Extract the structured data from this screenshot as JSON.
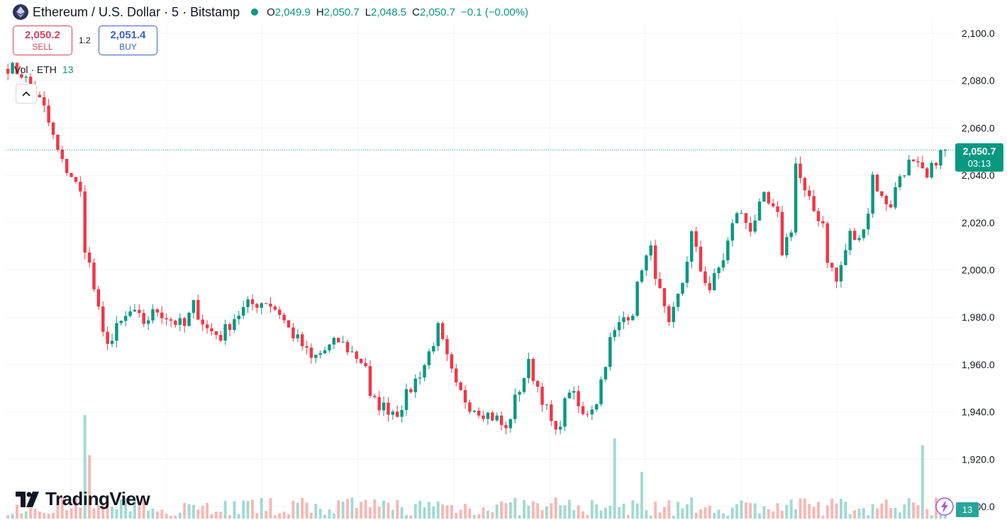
{
  "header": {
    "symbol": "Ethereum / U.S. Dollar · 5 · Bitstamp",
    "ohlc": [
      {
        "k": "O",
        "v": "2,049.9"
      },
      {
        "k": "H",
        "v": "2,050.7"
      },
      {
        "k": "L",
        "v": "2,048.5"
      },
      {
        "k": "C",
        "v": "2,050.7"
      }
    ],
    "change": "−0.1 (−0.00%)"
  },
  "trade": {
    "sell_price": "2,050.2",
    "sell_label": "SELL",
    "spread": "1.2",
    "buy_price": "2,051.4",
    "buy_label": "BUY"
  },
  "volume_legend": {
    "label": "Vol · ETH",
    "value": "13"
  },
  "price_tag": {
    "price": "2,050.7",
    "countdown": "03:13"
  },
  "volume_tag": "13",
  "logo_text": "TradingView",
  "colors": {
    "up": "#089981",
    "down": "#f23645",
    "up_vol": "#8fd3c8",
    "down_vol": "#f7a9a7"
  },
  "icons": [
    "ethereum-icon",
    "status-dot-icon",
    "chevron-up-icon",
    "tradingview-logo-icon",
    "lightning-icon"
  ],
  "chart_data": {
    "type": "candlestick",
    "interval": "5",
    "ylim": [
      1900,
      2105
    ],
    "yticks": [
      "2,100.0",
      "2,080.0",
      "2,060.0",
      "2,040.0",
      "2,020.0",
      "2,000.0",
      "1,980.0",
      "1,960.0",
      "1,940.0",
      "1,920.0",
      "1,900.0"
    ],
    "ytick_values": [
      2100,
      2080,
      2060,
      2040,
      2020,
      2000,
      1980,
      1960,
      1940,
      1920,
      1900
    ],
    "last_price": 2050.7,
    "close_path": [
      [
        0,
        2086
      ],
      [
        3,
        2083
      ],
      [
        6,
        2075
      ],
      [
        8,
        2068
      ],
      [
        9,
        2062
      ],
      [
        11,
        2050
      ],
      [
        12,
        2045
      ],
      [
        14,
        2040
      ],
      [
        16,
        2032
      ],
      [
        17,
        2010
      ],
      [
        18,
        2002
      ],
      [
        19,
        1992
      ],
      [
        21,
        1972
      ],
      [
        23,
        1970
      ],
      [
        24,
        1975
      ],
      [
        27,
        1982
      ],
      [
        30,
        1978
      ],
      [
        33,
        1983
      ],
      [
        36,
        1979
      ],
      [
        39,
        1976
      ],
      [
        41,
        1985
      ],
      [
        44,
        1975
      ],
      [
        47,
        1972
      ],
      [
        50,
        1980
      ],
      [
        53,
        1985
      ],
      [
        57,
        1987
      ],
      [
        60,
        1982
      ],
      [
        62,
        1975
      ],
      [
        65,
        1968
      ],
      [
        67,
        1962
      ],
      [
        70,
        1966
      ],
      [
        73,
        1970
      ],
      [
        76,
        1965
      ],
      [
        79,
        1960
      ],
      [
        80,
        1945
      ],
      [
        83,
        1942
      ],
      [
        86,
        1940
      ],
      [
        89,
        1950
      ],
      [
        92,
        1960
      ],
      [
        95,
        1975
      ],
      [
        97,
        1962
      ],
      [
        99,
        1950
      ],
      [
        102,
        1943
      ],
      [
        105,
        1940
      ],
      [
        108,
        1937
      ],
      [
        110,
        1932
      ],
      [
        112,
        1945
      ],
      [
        115,
        1960
      ],
      [
        118,
        1946
      ],
      [
        121,
        1930
      ],
      [
        124,
        1950
      ],
      [
        127,
        1938
      ],
      [
        130,
        1945
      ],
      [
        133,
        1970
      ],
      [
        136,
        1980
      ],
      [
        138,
        1983
      ],
      [
        140,
        2002
      ],
      [
        142,
        2008
      ],
      [
        144,
        1990
      ],
      [
        146,
        1975
      ],
      [
        149,
        1995
      ],
      [
        151,
        2015
      ],
      [
        153,
        2000
      ],
      [
        155,
        1992
      ],
      [
        158,
        2005
      ],
      [
        161,
        2025
      ],
      [
        164,
        2018
      ],
      [
        167,
        2030
      ],
      [
        170,
        2022
      ],
      [
        171,
        2008
      ],
      [
        173,
        2018
      ],
      [
        174,
        2045
      ],
      [
        176,
        2032
      ],
      [
        178,
        2025
      ],
      [
        180,
        2020
      ],
      [
        181,
        2005
      ],
      [
        183,
        1995
      ],
      [
        186,
        2015
      ],
      [
        188,
        2012
      ],
      [
        189,
        2020
      ],
      [
        190,
        2025
      ],
      [
        191,
        2040
      ],
      [
        193,
        2030
      ],
      [
        195,
        2028
      ],
      [
        197,
        2040
      ],
      [
        199,
        2045
      ],
      [
        201,
        2043
      ],
      [
        203,
        2038
      ],
      [
        205,
        2047
      ],
      [
        207,
        2051
      ]
    ],
    "volume_scale": [
      0,
      170
    ],
    "volume_spikes": [
      {
        "i": 17,
        "v": 155,
        "dir": "up"
      },
      {
        "i": 18,
        "v": 95,
        "dir": "down"
      },
      {
        "i": 134,
        "v": 120,
        "dir": "up"
      },
      {
        "i": 140,
        "v": 70,
        "dir": "up"
      },
      {
        "i": 202,
        "v": 110,
        "dir": "up"
      }
    ]
  }
}
